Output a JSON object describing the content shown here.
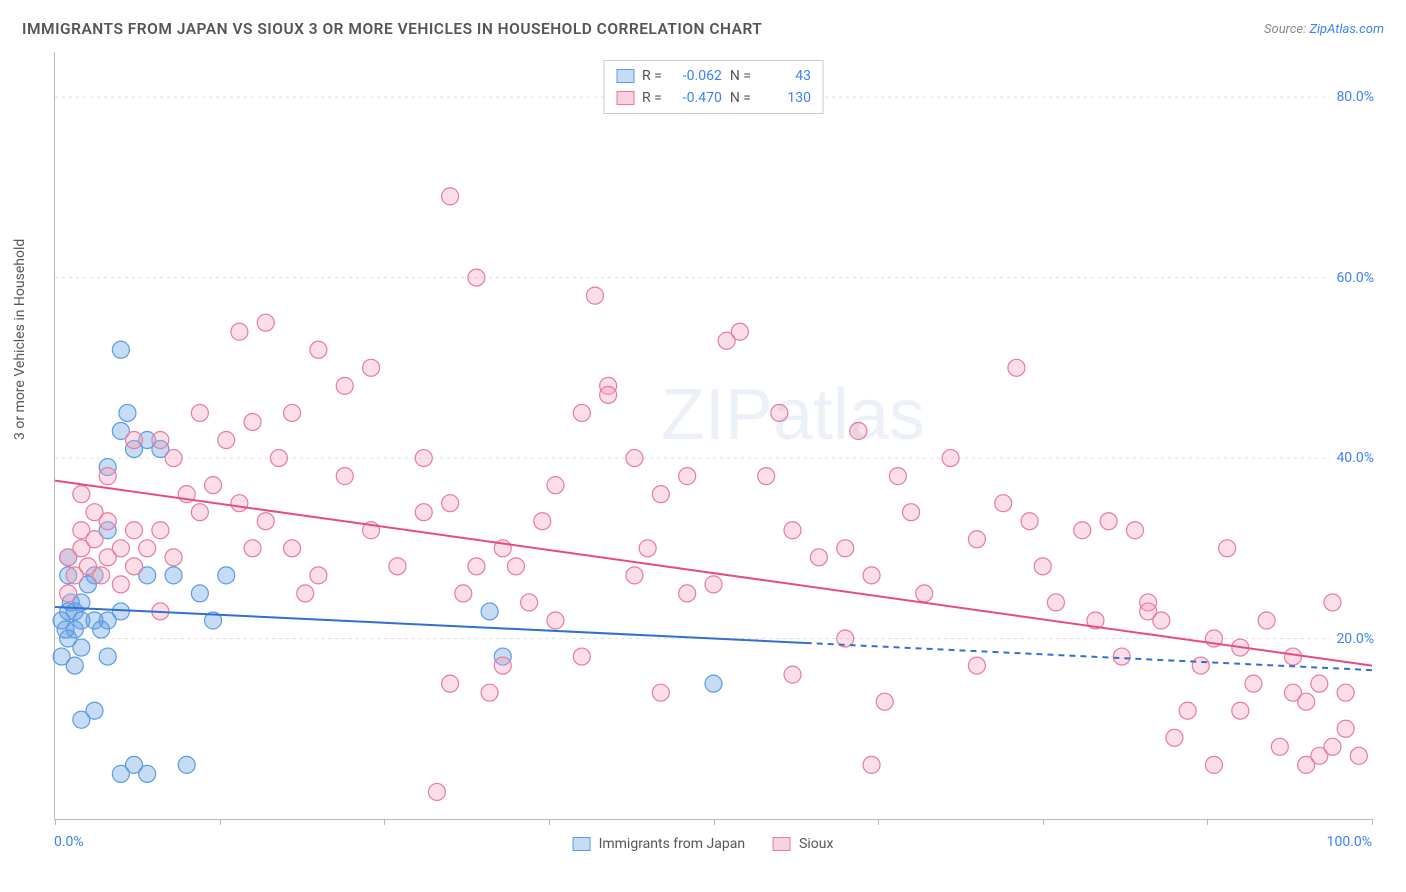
{
  "title": "IMMIGRANTS FROM JAPAN VS SIOUX 3 OR MORE VEHICLES IN HOUSEHOLD CORRELATION CHART",
  "source_prefix": "Source: ",
  "source_link": "ZipAtlas.com",
  "ylabel": "3 or more Vehicles in Household",
  "watermark_a": "ZIP",
  "watermark_b": "atlas",
  "xaxis": {
    "min_label": "0.0%",
    "max_label": "100.0%",
    "min": 0,
    "max": 100,
    "tick_positions": [
      0,
      12.5,
      25,
      37.5,
      50,
      62.5,
      75,
      87.5,
      100
    ]
  },
  "yaxis": {
    "min": 0,
    "max": 85,
    "ticks": [
      20,
      40,
      60,
      80
    ],
    "tick_labels": [
      "20.0%",
      "40.0%",
      "60.0%",
      "80.0%"
    ]
  },
  "stats": {
    "series1": {
      "color": "blue",
      "R_label": "R =",
      "R": "-0.062",
      "N_label": "N =",
      "N": "43"
    },
    "series2": {
      "color": "pink",
      "R_label": "R =",
      "R": "-0.470",
      "N_label": "N =",
      "N": "130"
    }
  },
  "legend": {
    "s1": "Immigrants from Japan",
    "s2": "Sioux"
  },
  "chart": {
    "type": "scatter",
    "background_color": "#ffffff",
    "grid_color": "#dddddd",
    "marker_radius": 8.5,
    "series": [
      {
        "name": "Immigrants from Japan",
        "color_fill": "rgba(93,155,227,0.35)",
        "color_stroke": "#5d9be3",
        "trend": {
          "y_at_x0": 23.5,
          "y_at_x100": 16.5,
          "solid_until_x": 57,
          "stroke": "#2f70d0",
          "width": 2
        },
        "points": [
          [
            0.5,
            22
          ],
          [
            0.8,
            21
          ],
          [
            1,
            23
          ],
          [
            1,
            20
          ],
          [
            1.2,
            24
          ],
          [
            1.5,
            21
          ],
          [
            0.5,
            18
          ],
          [
            1,
            27
          ],
          [
            1.5,
            23
          ],
          [
            2,
            22
          ],
          [
            1,
            29
          ],
          [
            2,
            24
          ],
          [
            3,
            22
          ],
          [
            2,
            19
          ],
          [
            2.5,
            26
          ],
          [
            3,
            27
          ],
          [
            3.5,
            21
          ],
          [
            4,
            22
          ],
          [
            5,
            23
          ],
          [
            4,
            18
          ],
          [
            5,
            43
          ],
          [
            5.5,
            45
          ],
          [
            6,
            41
          ],
          [
            4,
            39
          ],
          [
            7,
            42
          ],
          [
            5,
            52
          ],
          [
            7,
            27
          ],
          [
            8,
            41
          ],
          [
            9,
            27
          ],
          [
            11,
            25
          ],
          [
            12,
            22
          ],
          [
            13,
            27
          ],
          [
            2,
            11
          ],
          [
            3,
            12
          ],
          [
            5,
            5
          ],
          [
            6,
            6
          ],
          [
            7,
            5
          ],
          [
            10,
            6
          ],
          [
            33,
            23
          ],
          [
            34,
            18
          ],
          [
            50,
            15
          ],
          [
            4,
            32
          ],
          [
            1.5,
            17
          ]
        ]
      },
      {
        "name": "Sioux",
        "color_fill": "rgba(244,160,185,0.35)",
        "color_stroke": "#e97b9e",
        "trend": {
          "y_at_x0": 37.5,
          "y_at_x100": 17,
          "solid_until_x": 100,
          "stroke": "#e94b7e",
          "width": 2
        },
        "points": [
          [
            1,
            29
          ],
          [
            1.5,
            27
          ],
          [
            2,
            30
          ],
          [
            2.5,
            28
          ],
          [
            1,
            25
          ],
          [
            2,
            32
          ],
          [
            3,
            31
          ],
          [
            3.5,
            27
          ],
          [
            4,
            29
          ],
          [
            5,
            30
          ],
          [
            4,
            33
          ],
          [
            6,
            32
          ],
          [
            5,
            26
          ],
          [
            7,
            30
          ],
          [
            8,
            32
          ],
          [
            6,
            28
          ],
          [
            9,
            29
          ],
          [
            3,
            34
          ],
          [
            2,
            36
          ],
          [
            4,
            38
          ],
          [
            6,
            42
          ],
          [
            8,
            42
          ],
          [
            9,
            40
          ],
          [
            10,
            36
          ],
          [
            11,
            34
          ],
          [
            12,
            37
          ],
          [
            14,
            35
          ],
          [
            15,
            30
          ],
          [
            16,
            33
          ],
          [
            18,
            30
          ],
          [
            14,
            54
          ],
          [
            16,
            55
          ],
          [
            18,
            45
          ],
          [
            20,
            52
          ],
          [
            22,
            48
          ],
          [
            24,
            50
          ],
          [
            28,
            40
          ],
          [
            30,
            69
          ],
          [
            32,
            60
          ],
          [
            28,
            34
          ],
          [
            30,
            35
          ],
          [
            31,
            25
          ],
          [
            32,
            28
          ],
          [
            34,
            30
          ],
          [
            40,
            45
          ],
          [
            41,
            58
          ],
          [
            42,
            48
          ],
          [
            42,
            47
          ],
          [
            44,
            40
          ],
          [
            45,
            30
          ],
          [
            46,
            36
          ],
          [
            48,
            25
          ],
          [
            38,
            22
          ],
          [
            30,
            15
          ],
          [
            33,
            14
          ],
          [
            35,
            28
          ],
          [
            37,
            33
          ],
          [
            51,
            53
          ],
          [
            52,
            54
          ],
          [
            54,
            38
          ],
          [
            55,
            45
          ],
          [
            56,
            32
          ],
          [
            58,
            29
          ],
          [
            60,
            30
          ],
          [
            60,
            20
          ],
          [
            61,
            43
          ],
          [
            62,
            27
          ],
          [
            64,
            38
          ],
          [
            65,
            34
          ],
          [
            66,
            25
          ],
          [
            68,
            40
          ],
          [
            70,
            31
          ],
          [
            70,
            17
          ],
          [
            72,
            35
          ],
          [
            73,
            50
          ],
          [
            74,
            33
          ],
          [
            75,
            28
          ],
          [
            76,
            24
          ],
          [
            78,
            32
          ],
          [
            79,
            22
          ],
          [
            80,
            33
          ],
          [
            81,
            18
          ],
          [
            82,
            32
          ],
          [
            83,
            24
          ],
          [
            83,
            23
          ],
          [
            84,
            22
          ],
          [
            85,
            9
          ],
          [
            86,
            12
          ],
          [
            87,
            17
          ],
          [
            88,
            20
          ],
          [
            89,
            30
          ],
          [
            90,
            19
          ],
          [
            90,
            12
          ],
          [
            91,
            15
          ],
          [
            92,
            22
          ],
          [
            93,
            8
          ],
          [
            94,
            18
          ],
          [
            94,
            14
          ],
          [
            95,
            13
          ],
          [
            96,
            7
          ],
          [
            96,
            15
          ],
          [
            97,
            8
          ],
          [
            97,
            24
          ],
          [
            98,
            14
          ],
          [
            98,
            10
          ],
          [
            99,
            7
          ],
          [
            95,
            6
          ],
          [
            88,
            6
          ],
          [
            63,
            13
          ],
          [
            56,
            16
          ],
          [
            50,
            26
          ],
          [
            48,
            38
          ],
          [
            46,
            14
          ],
          [
            44,
            27
          ],
          [
            40,
            18
          ],
          [
            38,
            37
          ],
          [
            36,
            24
          ],
          [
            34,
            17
          ],
          [
            26,
            28
          ],
          [
            24,
            32
          ],
          [
            22,
            38
          ],
          [
            20,
            27
          ],
          [
            19,
            25
          ],
          [
            17,
            40
          ],
          [
            15,
            44
          ],
          [
            13,
            42
          ],
          [
            11,
            45
          ],
          [
            29,
            3
          ],
          [
            62,
            6
          ],
          [
            8,
            23
          ]
        ]
      }
    ]
  }
}
